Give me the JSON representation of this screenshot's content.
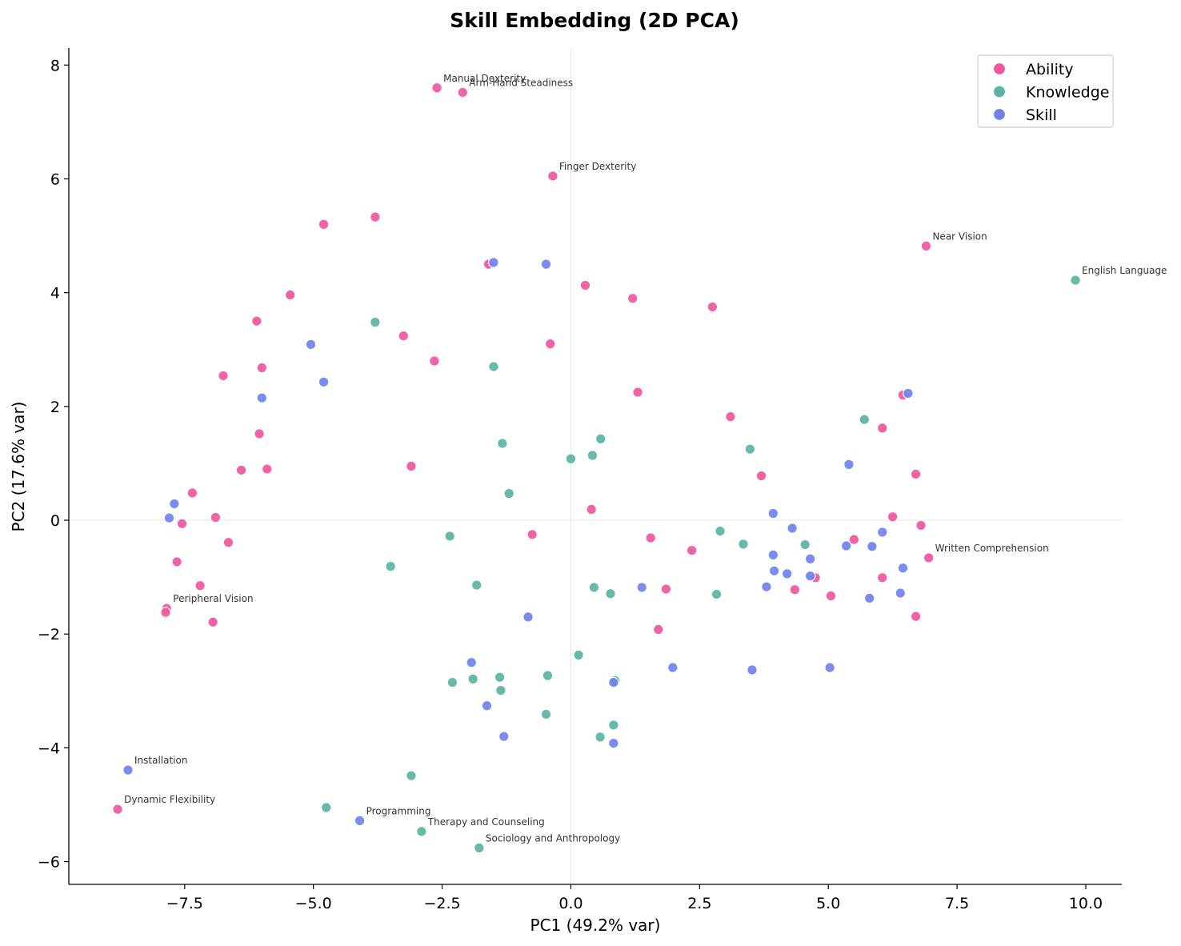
{
  "chart_data": {
    "type": "scatter",
    "title": "Skill Embedding (2D PCA)",
    "xlabel": "PC1 (49.2% var)",
    "ylabel": "PC2 (17.6% var)",
    "xlim": [
      -9.75,
      10.7
    ],
    "ylim": [
      -6.4,
      8.3
    ],
    "xticks": [
      -7.5,
      -5.0,
      -2.5,
      0.0,
      2.5,
      5.0,
      7.5,
      10.0
    ],
    "xtick_labels": [
      "−7.5",
      "−5.0",
      "−2.5",
      "0.0",
      "2.5",
      "5.0",
      "7.5",
      "10.0"
    ],
    "yticks": [
      -6,
      -4,
      -2,
      0,
      2,
      4,
      6,
      8
    ],
    "ytick_labels": [
      "−6",
      "−4",
      "−2",
      "0",
      "2",
      "4",
      "6",
      "8"
    ],
    "grid": false,
    "zero_lines": true,
    "legend_position": "top-right",
    "series": [
      {
        "name": "Ability",
        "color": "#f0559f",
        "points": [
          [
            -2.6,
            7.6
          ],
          [
            -2.1,
            7.52
          ],
          [
            -0.35,
            6.05
          ],
          [
            -4.8,
            5.2
          ],
          [
            -3.8,
            5.33
          ],
          [
            -1.6,
            4.5
          ],
          [
            0.28,
            4.13
          ],
          [
            1.2,
            3.9
          ],
          [
            2.75,
            3.75
          ],
          [
            -5.45,
            3.96
          ],
          [
            -6.1,
            3.5
          ],
          [
            -3.25,
            3.24
          ],
          [
            -0.4,
            3.1
          ],
          [
            -2.65,
            2.8
          ],
          [
            -6.75,
            2.54
          ],
          [
            -6.0,
            2.68
          ],
          [
            1.3,
            2.25
          ],
          [
            3.1,
            1.82
          ],
          [
            6.45,
            2.2
          ],
          [
            6.05,
            1.62
          ],
          [
            -6.05,
            1.52
          ],
          [
            -3.1,
            0.95
          ],
          [
            -5.9,
            0.9
          ],
          [
            -6.4,
            0.88
          ],
          [
            -7.35,
            0.48
          ],
          [
            3.7,
            0.78
          ],
          [
            6.7,
            0.81
          ],
          [
            0.4,
            0.19
          ],
          [
            -0.75,
            -0.25
          ],
          [
            6.25,
            0.06
          ],
          [
            6.8,
            -0.09
          ],
          [
            -6.9,
            0.05
          ],
          [
            -7.55,
            -0.06
          ],
          [
            -6.65,
            -0.39
          ],
          [
            1.55,
            -0.31
          ],
          [
            5.5,
            -0.34
          ],
          [
            2.35,
            -0.53
          ],
          [
            -7.65,
            -0.73
          ],
          [
            6.95,
            -0.66
          ],
          [
            4.75,
            -1.01
          ],
          [
            6.05,
            -1.01
          ],
          [
            -7.2,
            -1.15
          ],
          [
            1.85,
            -1.21
          ],
          [
            4.35,
            -1.22
          ],
          [
            5.05,
            -1.33
          ],
          [
            -7.85,
            -1.55
          ],
          [
            -7.87,
            -1.62
          ],
          [
            6.7,
            -1.69
          ],
          [
            -6.95,
            -1.79
          ],
          [
            1.7,
            -1.92
          ],
          [
            6.9,
            4.82
          ],
          [
            -8.8,
            -5.08
          ]
        ]
      },
      {
        "name": "Knowledge",
        "color": "#5ab4a4",
        "points": [
          [
            9.8,
            4.22
          ],
          [
            -3.8,
            3.48
          ],
          [
            -1.5,
            2.7
          ],
          [
            5.7,
            1.77
          ],
          [
            0.58,
            1.43
          ],
          [
            -1.33,
            1.35
          ],
          [
            3.48,
            1.25
          ],
          [
            0.42,
            1.14
          ],
          [
            0.0,
            1.08
          ],
          [
            -1.2,
            0.47
          ],
          [
            -2.35,
            -0.28
          ],
          [
            2.9,
            -0.19
          ],
          [
            3.35,
            -0.42
          ],
          [
            4.55,
            -0.43
          ],
          [
            -3.5,
            -0.81
          ],
          [
            -1.83,
            -1.14
          ],
          [
            0.45,
            -1.18
          ],
          [
            0.77,
            -1.29
          ],
          [
            2.83,
            -1.3
          ],
          [
            0.15,
            -2.37
          ],
          [
            -2.3,
            -2.85
          ],
          [
            -1.9,
            -2.79
          ],
          [
            -1.38,
            -2.76
          ],
          [
            -0.45,
            -2.73
          ],
          [
            -1.36,
            -2.99
          ],
          [
            0.86,
            -2.82
          ],
          [
            -0.48,
            -3.41
          ],
          [
            0.83,
            -3.6
          ],
          [
            0.57,
            -3.81
          ],
          [
            -3.1,
            -4.49
          ],
          [
            -4.75,
            -5.05
          ],
          [
            -2.9,
            -5.47
          ],
          [
            -1.78,
            -5.76
          ]
        ]
      },
      {
        "name": "Skill",
        "color": "#6f82ee",
        "points": [
          [
            -1.5,
            4.53
          ],
          [
            -0.48,
            4.5
          ],
          [
            -5.05,
            3.09
          ],
          [
            -4.8,
            2.43
          ],
          [
            -6.0,
            2.15
          ],
          [
            6.55,
            2.23
          ],
          [
            5.4,
            0.98
          ],
          [
            -7.7,
            0.29
          ],
          [
            -7.8,
            0.04
          ],
          [
            3.93,
            0.12
          ],
          [
            4.3,
            -0.14
          ],
          [
            6.05,
            -0.21
          ],
          [
            5.35,
            -0.45
          ],
          [
            5.85,
            -0.46
          ],
          [
            3.93,
            -0.61
          ],
          [
            4.65,
            -0.68
          ],
          [
            3.95,
            -0.89
          ],
          [
            4.2,
            -0.94
          ],
          [
            4.65,
            -0.98
          ],
          [
            6.45,
            -0.84
          ],
          [
            1.38,
            -1.18
          ],
          [
            3.8,
            -1.17
          ],
          [
            5.8,
            -1.37
          ],
          [
            6.4,
            -1.28
          ],
          [
            -0.83,
            -1.7
          ],
          [
            -1.93,
            -2.5
          ],
          [
            1.98,
            -2.59
          ],
          [
            3.52,
            -2.63
          ],
          [
            5.03,
            -2.59
          ],
          [
            0.83,
            -2.85
          ],
          [
            -1.63,
            -3.26
          ],
          [
            -1.3,
            -3.8
          ],
          [
            0.83,
            -3.92
          ],
          [
            -8.6,
            -4.39
          ],
          [
            -4.1,
            -5.28
          ]
        ]
      }
    ],
    "annotations": [
      {
        "text": "Manual Dexterity",
        "x": -2.6,
        "y": 7.6
      },
      {
        "text": "Arm-Hand Steadiness",
        "x": -2.1,
        "y": 7.52
      },
      {
        "text": "Finger Dexterity",
        "x": -0.35,
        "y": 6.05
      },
      {
        "text": "Near Vision",
        "x": 6.9,
        "y": 4.82
      },
      {
        "text": "English Language",
        "x": 9.8,
        "y": 4.22
      },
      {
        "text": "Written Comprehension",
        "x": 6.95,
        "y": -0.66
      },
      {
        "text": "Peripheral Vision",
        "x": -7.85,
        "y": -1.55
      },
      {
        "text": "Installation",
        "x": -8.6,
        "y": -4.39
      },
      {
        "text": "Dynamic Flexibility",
        "x": -8.8,
        "y": -5.08
      },
      {
        "text": "Programming",
        "x": -4.1,
        "y": -5.28
      },
      {
        "text": "Therapy and Counseling",
        "x": -2.9,
        "y": -5.47
      },
      {
        "text": "Sociology and Anthropology",
        "x": -1.78,
        "y": -5.76
      }
    ]
  }
}
